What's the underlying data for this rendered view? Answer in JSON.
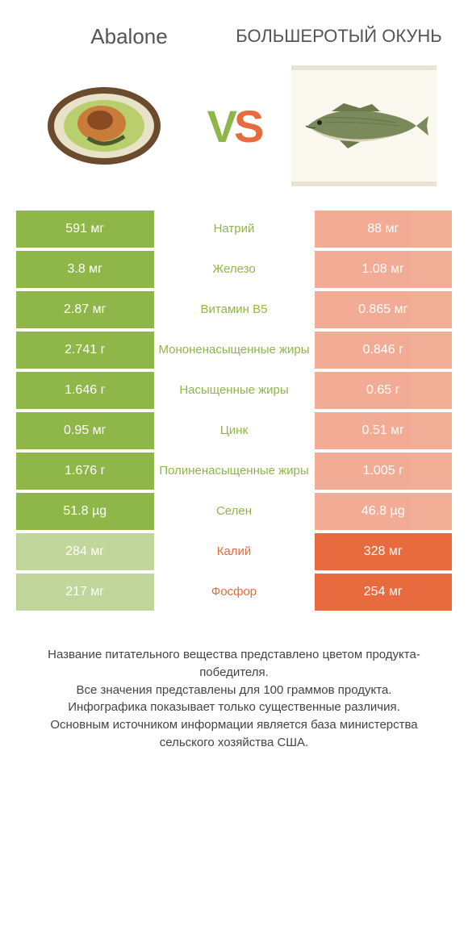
{
  "header": {
    "left_title": "Abalone",
    "right_title": "БОЛЬШЕРОТЫЙ ОКУНЬ",
    "vs_v": "V",
    "vs_s": "S"
  },
  "colors": {
    "green": "#8fb648",
    "orange": "#e86a3f",
    "row_gap": 4,
    "background": "#ffffff"
  },
  "rows": [
    {
      "left": "591 мг",
      "label": "Натрий",
      "right": "88 мг",
      "winner": "left"
    },
    {
      "left": "3.8 мг",
      "label": "Железо",
      "right": "1.08 мг",
      "winner": "left"
    },
    {
      "left": "2.87 мг",
      "label": "Витамин B5",
      "right": "0.865 мг",
      "winner": "left"
    },
    {
      "left": "2.741 г",
      "label": "Мононенасыщенные жиры",
      "right": "0.846 г",
      "winner": "left"
    },
    {
      "left": "1.646 г",
      "label": "Насыщенные жиры",
      "right": "0.65 г",
      "winner": "left"
    },
    {
      "left": "0.95 мг",
      "label": "Цинк",
      "right": "0.51 мг",
      "winner": "left"
    },
    {
      "left": "1.676 г",
      "label": "Полиненасыщенные жиры",
      "right": "1.005 г",
      "winner": "left"
    },
    {
      "left": "51.8 µg",
      "label": "Селен",
      "right": "46.8 µg",
      "winner": "left"
    },
    {
      "left": "284 мг",
      "label": "Калий",
      "right": "328 мг",
      "winner": "right"
    },
    {
      "left": "217 мг",
      "label": "Фосфор",
      "right": "254 мг",
      "winner": "right"
    }
  ],
  "footer": {
    "line1": "Название питательного вещества представлено цветом продукта-победителя.",
    "line2": "Все значения представлены для 100 граммов продукта.",
    "line3": "Инфографика показывает только существенные различия.",
    "line4": "Основным источником информации является база министерства сельского хозяйства США."
  }
}
